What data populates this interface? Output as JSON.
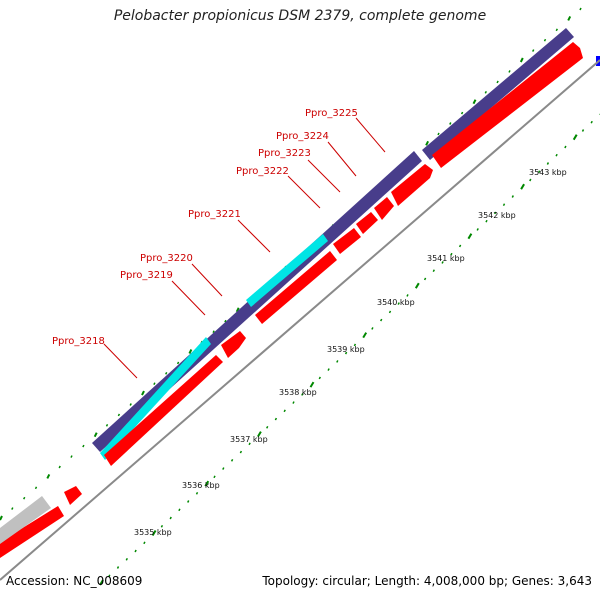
{
  "title": "Pelobacter propionicus DSM 2379, complete genome",
  "footer": {
    "accession": "Accession: NC_008609",
    "summary": "Topology: circular; Length: 4,008,000 bp; Genes: 3,643"
  },
  "colors": {
    "cds_forward": "#ff0000",
    "cds_reverse": "#483d8b",
    "cds_highlight": "#00e5e5",
    "other_gene": "#c0c0c0",
    "label": "#cc0000",
    "tick": "#008800",
    "backbone": "#8a8a8a",
    "edge_marker": "#0000ff"
  },
  "genes": [
    {
      "name": "Ppro_3218"
    },
    {
      "name": "Ppro_3219"
    },
    {
      "name": "Ppro_3220"
    },
    {
      "name": "Ppro_3221"
    },
    {
      "name": "Ppro_3222"
    },
    {
      "name": "Ppro_3223"
    },
    {
      "name": "Ppro_3224"
    },
    {
      "name": "Ppro_3225"
    }
  ],
  "kbp_ticks": [
    "3535 kbp",
    "3536 kbp",
    "3537 kbp",
    "3538 kbp",
    "3539 kbp",
    "3540 kbp",
    "3541 kbp",
    "3542 kbp",
    "3543 kbp"
  ]
}
